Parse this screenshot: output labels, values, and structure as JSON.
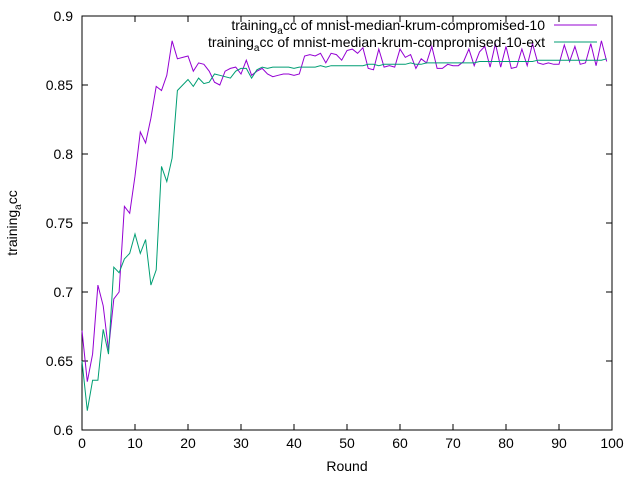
{
  "chart_data": {
    "type": "line",
    "xlabel": "Round",
    "ylabel": {
      "main": "training",
      "sub": "a",
      "tail": "cc"
    },
    "xlim": [
      0,
      100
    ],
    "ylim": [
      0.6,
      0.9
    ],
    "xticks": [
      0,
      10,
      20,
      30,
      40,
      50,
      60,
      70,
      80,
      90,
      100
    ],
    "yticks": [
      0.6,
      0.65,
      0.7,
      0.75,
      0.8,
      0.85,
      0.9
    ],
    "xtick_labels": [
      "0",
      "10",
      "20",
      "30",
      "40",
      "50",
      "60",
      "70",
      "80",
      "90",
      "100"
    ],
    "ytick_labels": [
      "0.6",
      "0.65",
      "0.7",
      "0.75",
      "0.8",
      "0.85",
      "0.9"
    ],
    "grid": false,
    "legend_position": "top-right",
    "series": [
      {
        "name": {
          "main": "training",
          "sub": "a",
          "tail": "cc of mnist-median-krum-compromised-10"
        },
        "color": "#9400d3",
        "x": [
          0,
          1,
          2,
          3,
          4,
          5,
          6,
          7,
          8,
          9,
          10,
          11,
          12,
          13,
          14,
          15,
          16,
          17,
          18,
          19,
          20,
          21,
          22,
          23,
          24,
          25,
          26,
          27,
          28,
          29,
          30,
          31,
          32,
          33,
          34,
          35,
          36,
          37,
          38,
          39,
          40,
          41,
          42,
          43,
          44,
          45,
          46,
          47,
          48,
          49,
          50,
          51,
          52,
          53,
          54,
          55,
          56,
          57,
          58,
          59,
          60,
          61,
          62,
          63,
          64,
          65,
          66,
          67,
          68,
          69,
          70,
          71,
          72,
          73,
          74,
          75,
          76,
          77,
          78,
          79,
          80,
          81,
          82,
          83,
          84,
          85,
          86,
          87,
          88,
          89,
          90,
          91,
          92,
          93,
          94,
          95,
          96,
          97,
          98,
          99
        ],
        "y": [
          0.672,
          0.635,
          0.655,
          0.705,
          0.69,
          0.658,
          0.695,
          0.7,
          0.762,
          0.757,
          0.784,
          0.816,
          0.808,
          0.826,
          0.849,
          0.846,
          0.857,
          0.882,
          0.869,
          0.87,
          0.871,
          0.86,
          0.866,
          0.865,
          0.86,
          0.852,
          0.85,
          0.86,
          0.862,
          0.863,
          0.858,
          0.868,
          0.857,
          0.86,
          0.862,
          0.858,
          0.856,
          0.857,
          0.858,
          0.858,
          0.857,
          0.858,
          0.871,
          0.872,
          0.871,
          0.873,
          0.866,
          0.873,
          0.872,
          0.868,
          0.875,
          0.876,
          0.873,
          0.877,
          0.862,
          0.861,
          0.876,
          0.863,
          0.864,
          0.863,
          0.876,
          0.87,
          0.872,
          0.862,
          0.869,
          0.866,
          0.878,
          0.862,
          0.862,
          0.865,
          0.864,
          0.864,
          0.867,
          0.876,
          0.864,
          0.874,
          0.878,
          0.863,
          0.88,
          0.863,
          0.878,
          0.862,
          0.863,
          0.876,
          0.864,
          0.88,
          0.866,
          0.865,
          0.866,
          0.865,
          0.865,
          0.879,
          0.867,
          0.878,
          0.865,
          0.866,
          0.88,
          0.864,
          0.882,
          0.867
        ]
      },
      {
        "name": {
          "main": "training",
          "sub": "a",
          "tail": "cc of mnist-median-krum-compromised-10-ext"
        },
        "color": "#009e73",
        "x": [
          0,
          1,
          2,
          3,
          4,
          5,
          6,
          7,
          8,
          9,
          10,
          11,
          12,
          13,
          14,
          15,
          16,
          17,
          18,
          19,
          20,
          21,
          22,
          23,
          24,
          25,
          26,
          27,
          28,
          29,
          30,
          31,
          32,
          33,
          34,
          35,
          36,
          37,
          38,
          39,
          40,
          41,
          42,
          43,
          44,
          45,
          46,
          47,
          48,
          49,
          50,
          51,
          52,
          53,
          54,
          55,
          56,
          57,
          58,
          59,
          60,
          61,
          62,
          63,
          64,
          65,
          66,
          67,
          68,
          69,
          70,
          71,
          72,
          73,
          74,
          75,
          76,
          77,
          78,
          79,
          80,
          81,
          82,
          83,
          84,
          85,
          86,
          87,
          88,
          89,
          90,
          91,
          92,
          93,
          94,
          95,
          96,
          97,
          98,
          99
        ],
        "y": [
          0.65,
          0.614,
          0.636,
          0.636,
          0.673,
          0.655,
          0.718,
          0.714,
          0.724,
          0.728,
          0.742,
          0.728,
          0.738,
          0.705,
          0.716,
          0.791,
          0.78,
          0.797,
          0.846,
          0.85,
          0.854,
          0.849,
          0.855,
          0.851,
          0.852,
          0.858,
          0.857,
          0.856,
          0.855,
          0.86,
          0.862,
          0.862,
          0.855,
          0.861,
          0.863,
          0.862,
          0.863,
          0.863,
          0.863,
          0.863,
          0.862,
          0.863,
          0.863,
          0.863,
          0.863,
          0.864,
          0.863,
          0.864,
          0.864,
          0.864,
          0.864,
          0.864,
          0.864,
          0.864,
          0.865,
          0.865,
          0.864,
          0.865,
          0.865,
          0.865,
          0.865,
          0.865,
          0.866,
          0.865,
          0.865,
          0.866,
          0.866,
          0.866,
          0.866,
          0.866,
          0.866,
          0.866,
          0.866,
          0.866,
          0.866,
          0.867,
          0.867,
          0.867,
          0.867,
          0.867,
          0.867,
          0.867,
          0.867,
          0.867,
          0.867,
          0.867,
          0.868,
          0.868,
          0.868,
          0.868,
          0.868,
          0.868,
          0.868,
          0.868,
          0.868,
          0.868,
          0.868,
          0.868,
          0.868,
          0.869
        ]
      }
    ]
  }
}
